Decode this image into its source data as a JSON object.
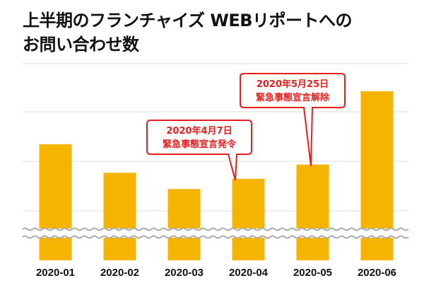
{
  "chart_data": {
    "type": "bar",
    "title_lines": [
      "上半期のフランチャイズ WEBリポートへの",
      "お問い合わせ数"
    ],
    "categories": [
      "2020-01",
      "2020-02",
      "2020-03",
      "2020-04",
      "2020-05",
      "2020-06"
    ],
    "values": [
      57,
      43,
      35,
      40,
      47,
      83
    ],
    "ylim": [
      0,
      100
    ],
    "y_axis_break": true,
    "gridlines": true,
    "tick_labels_y": false,
    "annotations": [
      {
        "category": "2020-04",
        "lines": [
          "2020年4月7日",
          "緊急事態宣言発令"
        ]
      },
      {
        "category": "2020-05",
        "lines": [
          "2020年5月25日",
          "緊急事態宣言解除"
        ]
      }
    ],
    "colors": {
      "bar": "#f5b400",
      "annotation": "#e61e1e",
      "grid": "#dddddd",
      "break": "#a8a8a8"
    }
  }
}
